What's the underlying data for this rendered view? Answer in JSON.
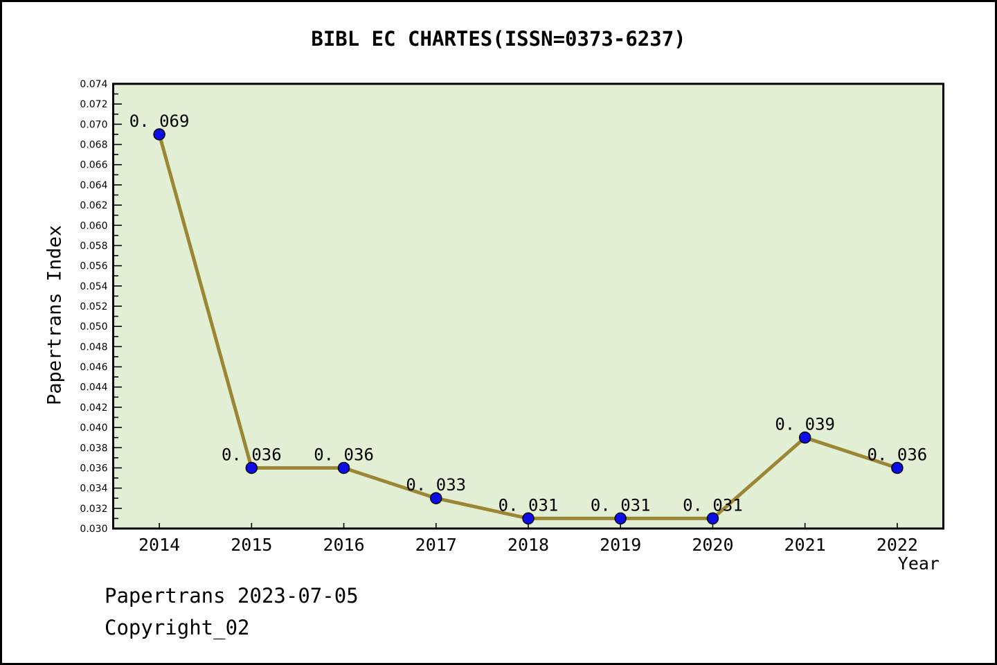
{
  "title": "BIBL EC CHARTES(ISSN=0373-6237)",
  "footer": {
    "date_line": "Papertrans 2023-07-05",
    "copyright_line": "Copyright_02"
  },
  "chart_data": {
    "type": "line",
    "title": "BIBL EC CHARTES(ISSN=0373-6237)",
    "xlabel": "Year",
    "ylabel": "Papertrans Index",
    "x": [
      2014,
      2015,
      2016,
      2017,
      2018,
      2019,
      2020,
      2021,
      2022
    ],
    "values": [
      0.069,
      0.036,
      0.036,
      0.033,
      0.031,
      0.031,
      0.031,
      0.039,
      0.036
    ],
    "point_labels": [
      "0. 069",
      "0. 036",
      "0. 036",
      "0. 033",
      "0. 031",
      "0. 031",
      "0. 031",
      "0. 039",
      "0. 036"
    ],
    "xlim": [
      2013.5,
      2022.5
    ],
    "ylim": [
      0.03,
      0.074
    ],
    "ytick_step": 0.002,
    "ytick_minor_step": 0.001,
    "ytick_decimals": 3,
    "grid": false,
    "legend_position": "none",
    "colors": {
      "plot_bg": "#e3efd4",
      "line": "#9a8634",
      "marker": "#0d0de8",
      "marker_edge": "#000000",
      "axis": "#000000",
      "text": "#000000"
    }
  }
}
